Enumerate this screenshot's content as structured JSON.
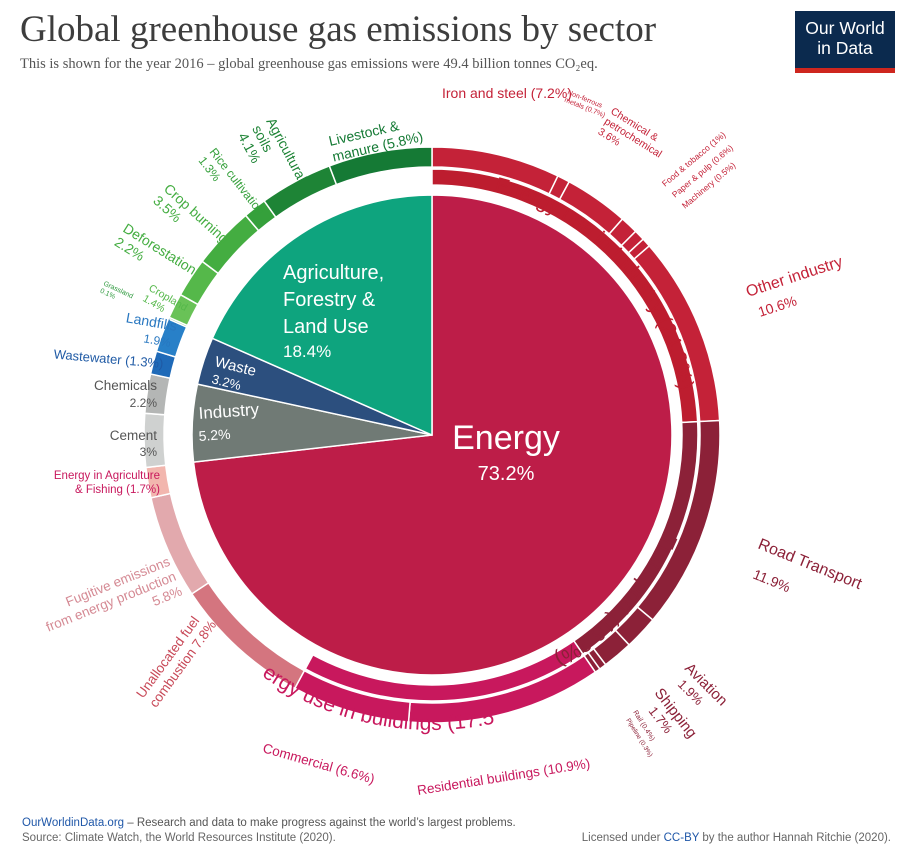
{
  "header": {
    "title": "Global greenhouse gas emissions by sector",
    "subtitle": "This is shown for the year 2016 – global greenhouse gas emissions were 49.4 billion tonnes CO₂eq."
  },
  "logo": {
    "line1": "Our World",
    "line2": "in Data",
    "bg": "#0b2a4e",
    "accent": "#ce261e"
  },
  "footer": {
    "site": "OurWorldinData.org",
    "tagline": " – Research and data to make progress against the world’s largest problems.",
    "source": "Source: Climate Watch, the World Resources Institute (2020).",
    "license_pre": "Licensed under ",
    "license_link": "CC-BY",
    "license_post": " by the author Hannah Ritchie (2020)."
  },
  "chart_data": {
    "type": "pie",
    "inner": [
      {
        "name": "Energy",
        "value": 73.2,
        "label": "73.2%",
        "color": "#bd1d48"
      },
      {
        "name": "Industry",
        "value": 5.2,
        "label": "5.2%",
        "color": "#707a75"
      },
      {
        "name": "Waste",
        "value": 3.2,
        "label": "3.2%",
        "color": "#2c4f7e"
      },
      {
        "name": "Agriculture, Forestry & Land Use",
        "value": 18.4,
        "label": "18.4%",
        "color": "#0ea47e"
      }
    ],
    "sectors": [
      {
        "name": "Energy use in Industry (24.2%)",
        "value": 24.2,
        "color": "#bd1d2f"
      },
      {
        "name": "Transport (16.2%)",
        "value": 16.2,
        "color": "#8c2138"
      },
      {
        "name": "Energy use in buildings (17.5%)",
        "value": 17.5,
        "color": "#c8185d"
      }
    ],
    "subsectors": [
      {
        "name": "Iron and steel",
        "value": 7.2,
        "label": "(7.2%)",
        "color": "#c42238"
      },
      {
        "name": "Non-ferrous metals",
        "value": 0.7,
        "label": "(0.7%)",
        "color": "#c42238"
      },
      {
        "name": "Chemical & petrochemical",
        "value": 3.6,
        "label": "3.6%",
        "color": "#c42238"
      },
      {
        "name": "Food & tobacco",
        "value": 1.0,
        "label": "(1%)",
        "color": "#c42238"
      },
      {
        "name": "Paper & pulp",
        "value": 0.6,
        "label": "(0.6%)",
        "color": "#c42238"
      },
      {
        "name": "Machinery",
        "value": 0.5,
        "label": "(0.5%)",
        "color": "#c42238"
      },
      {
        "name": "Other industry",
        "value": 10.6,
        "label": "10.6%",
        "color": "#c42238"
      },
      {
        "name": "Road Transport",
        "value": 11.9,
        "label": "11.9%",
        "color": "#8c2138"
      },
      {
        "name": "Aviation",
        "value": 1.9,
        "label": "1.9%",
        "color": "#8c2138"
      },
      {
        "name": "Shipping",
        "value": 1.7,
        "label": "1.7%",
        "color": "#8c2138"
      },
      {
        "name": "Rail",
        "value": 0.4,
        "label": "(0.4%)",
        "color": "#8c2138"
      },
      {
        "name": "Pipeline",
        "value": 0.3,
        "label": "(0.3%)",
        "color": "#8c2138"
      },
      {
        "name": "Residential buildings",
        "value": 10.9,
        "label": "(10.9%)",
        "color": "#c8185d"
      },
      {
        "name": "Commercial",
        "value": 6.6,
        "label": "(6.6%)",
        "color": "#c8185d"
      },
      {
        "name": "Unallocated fuel combustion",
        "value": 7.8,
        "label": "7.8%",
        "color": "#d4757f"
      },
      {
        "name": "Fugitive emissions from energy production",
        "value": 5.8,
        "label": "5.8%",
        "color": "#e2a9ad"
      },
      {
        "name": "Energy in Agriculture & Fishing",
        "value": 1.7,
        "label": "(1.7%)",
        "color": "#f2b6ae"
      },
      {
        "name": "Cement",
        "value": 3.0,
        "label": "3%",
        "color": "#cfd1d0"
      },
      {
        "name": "Chemicals",
        "value": 2.2,
        "label": "2.2%",
        "color": "#b4b6b5"
      },
      {
        "name": "Wastewater",
        "value": 1.3,
        "label": "(1.3%)",
        "color": "#1f6ab8"
      },
      {
        "name": "Landfills",
        "value": 1.9,
        "label": "1.9%",
        "color": "#2880c8"
      },
      {
        "name": "Grassland",
        "value": 0.1,
        "label": "0.1%",
        "color": "#2e9a3e"
      },
      {
        "name": "Cropland",
        "value": 1.4,
        "label": "1.4%",
        "color": "#69c257"
      },
      {
        "name": "Deforestation",
        "value": 2.2,
        "label": "2.2%",
        "color": "#55b84a"
      },
      {
        "name": "Crop burning",
        "value": 3.5,
        "label": "3.5%",
        "color": "#44ad41"
      },
      {
        "name": "Rice cultivation",
        "value": 1.3,
        "label": "1.3%",
        "color": "#35a03b"
      },
      {
        "name": "Agricultural soils",
        "value": 4.1,
        "label": "4.1%",
        "color": "#1e8436"
      },
      {
        "name": "Livestock & manure",
        "value": 5.8,
        "label": "(5.8%)",
        "color": "#157a35"
      }
    ]
  }
}
